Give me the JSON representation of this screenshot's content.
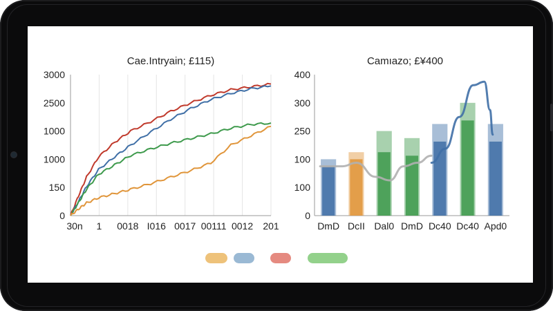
{
  "chart_data": [
    {
      "type": "line",
      "title": "Cae.Intryain; £115)",
      "y_tick_labels": [
        "3000",
        "2500",
        "1000",
        "1000",
        "150",
        "0"
      ],
      "x_tick_labels": [
        "30n",
        "1",
        "0018",
        "I016",
        "0017",
        "00111",
        "0012",
        "201"
      ],
      "ylim": [
        0,
        3000
      ],
      "xlim": [
        0,
        100
      ],
      "grid": "vertical",
      "series": [
        {
          "color": "#c0392b",
          "x": [
            0,
            4,
            8,
            14,
            22,
            30,
            40,
            50,
            60,
            70,
            80,
            90,
            100
          ],
          "y": [
            0,
            420,
            820,
            1250,
            1560,
            1800,
            2000,
            2220,
            2400,
            2560,
            2680,
            2740,
            2800
          ]
        },
        {
          "color": "#3f6fa6",
          "x": [
            0,
            4,
            8,
            14,
            22,
            30,
            40,
            50,
            60,
            70,
            80,
            90,
            100
          ],
          "y": [
            0,
            300,
            620,
            980,
            1250,
            1500,
            1780,
            2050,
            2280,
            2470,
            2600,
            2700,
            2760
          ]
        },
        {
          "color": "#3e9a4c",
          "x": [
            0,
            4,
            8,
            14,
            22,
            30,
            40,
            50,
            60,
            70,
            80,
            90,
            100
          ],
          "y": [
            0,
            280,
            560,
            880,
            1080,
            1280,
            1420,
            1540,
            1640,
            1740,
            1860,
            1940,
            1970
          ]
        },
        {
          "color": "#e0953a",
          "x": [
            0,
            4,
            8,
            14,
            22,
            30,
            40,
            50,
            60,
            70,
            80,
            90,
            100
          ],
          "y": [
            0,
            140,
            270,
            380,
            470,
            560,
            680,
            820,
            960,
            1120,
            1500,
            1700,
            1900
          ]
        }
      ]
    },
    {
      "type": "bar",
      "title": "Camıazo; £¥400",
      "y_tick_labels": [
        "400",
        "300",
        "250",
        "100",
        "100",
        "0"
      ],
      "categories": [
        "DmD",
        "DcII",
        "Dal0",
        "DmD",
        "Dc40",
        "Dc40",
        "Apd0"
      ],
      "ylim": [
        0,
        400
      ],
      "bar_values": [
        160,
        180,
        240,
        220,
        260,
        320,
        260
      ],
      "bar_colors": [
        "#3f6fa6",
        "#e0953a",
        "#3e9a4c",
        "#3e9a4c",
        "#3f6fa6",
        "#3e9a4c",
        "#3f6fa6"
      ],
      "overlay_values": [
        140,
        160,
        180,
        170,
        210,
        270,
        210
      ],
      "line_overlays": [
        {
          "color": "#b0b0b0",
          "x": [
            0,
            0.8,
            1.3,
            2,
            2.5,
            3,
            3.5,
            4
          ],
          "y": [
            140,
            140,
            150,
            110,
            100,
            140,
            150,
            170
          ]
        },
        {
          "color": "#3f6fa6",
          "x": [
            4,
            4.5,
            5,
            5.5,
            5.9,
            6.1,
            6.2
          ],
          "y": [
            150,
            190,
            280,
            370,
            380,
            300,
            230
          ]
        }
      ]
    }
  ],
  "legend": {
    "swatches": [
      {
        "name": "orange-swatch",
        "color": "#eec27a"
      },
      {
        "name": "blue-swatch",
        "color": "#9ab9d4"
      },
      {
        "name": "red-swatch",
        "color": "#e58a80"
      },
      {
        "name": "green-swatch",
        "color": "#93d18b"
      }
    ]
  },
  "device": {
    "frame_color": "#0b0b0c",
    "screen_color": "#ffffff"
  }
}
